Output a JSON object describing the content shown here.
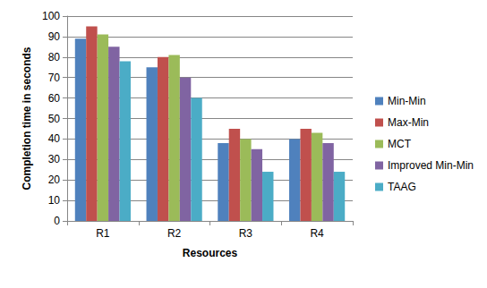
{
  "chart_data": {
    "type": "bar",
    "x_label": "Resources",
    "y_label": "Completion time in seconds",
    "categories": [
      "R1",
      "R2",
      "R3",
      "R4"
    ],
    "series": [
      {
        "name": "Min-Min",
        "color": "#4F81BD",
        "values": [
          89,
          75,
          38,
          40
        ]
      },
      {
        "name": "Max-Min",
        "color": "#C0504D",
        "values": [
          95,
          80,
          45,
          45
        ]
      },
      {
        "name": "MCT",
        "color": "#9BBB59",
        "values": [
          91,
          81,
          40,
          43
        ]
      },
      {
        "name": "Improved Min-Min",
        "color": "#8064A2",
        "values": [
          85,
          70,
          35,
          38
        ]
      },
      {
        "name": "TAAG",
        "color": "#4BACC6",
        "values": [
          78,
          60,
          24,
          24
        ]
      }
    ],
    "ylim": [
      0,
      100
    ],
    "yticks": [
      0,
      10,
      20,
      30,
      40,
      50,
      60,
      70,
      80,
      90,
      100
    ],
    "grid": true,
    "legend": "right"
  }
}
